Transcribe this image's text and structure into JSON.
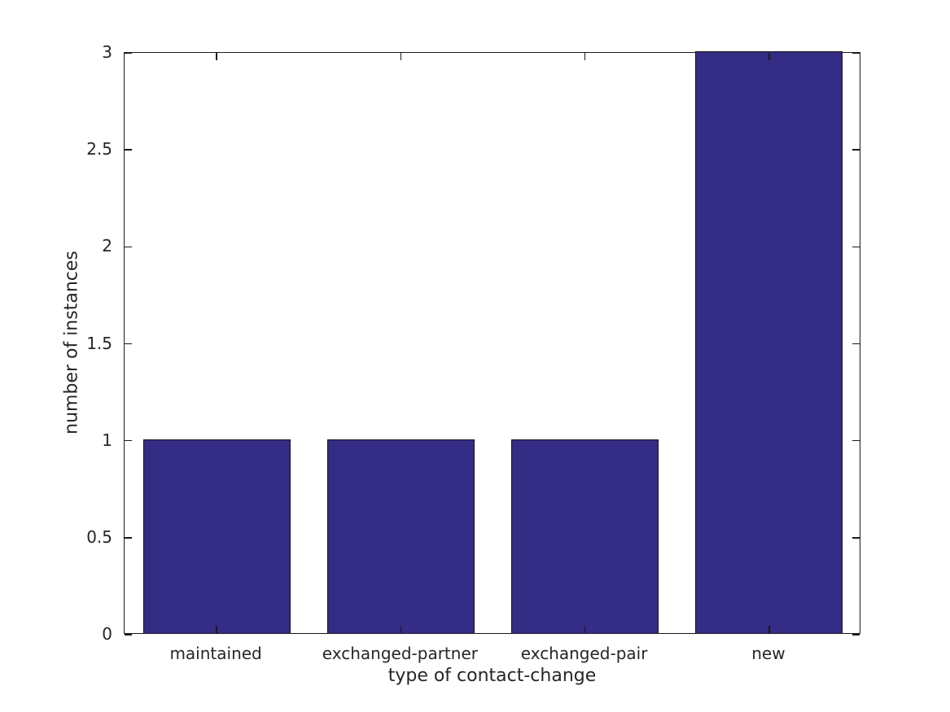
{
  "chart_data": {
    "type": "bar",
    "categories": [
      "maintained",
      "exchanged-partner",
      "exchanged-pair",
      "new"
    ],
    "values": [
      1,
      1,
      1,
      3
    ],
    "title": "",
    "xlabel": "type of contact-change",
    "ylabel": "number of instances",
    "ylim": [
      0,
      3
    ],
    "yticks": [
      0,
      0.5,
      1,
      1.5,
      2,
      2.5,
      3
    ],
    "ytick_labels": [
      "0",
      "0.5",
      "1",
      "1.5",
      "2",
      "2.5",
      "3"
    ],
    "bar_width_fraction": 0.8,
    "grid": false,
    "legend": null,
    "colors": {
      "bar_fill": "#352c85",
      "bar_border": "#141414",
      "axis": "#1a1a1a",
      "text": "#262626",
      "background": "#ffffff"
    }
  }
}
